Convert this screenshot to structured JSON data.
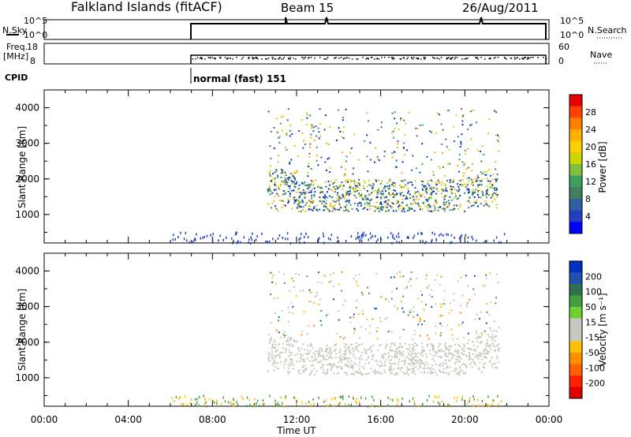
{
  "header": {
    "station": "Falkland Islands (fitACF)",
    "beam": "Beam 15",
    "date": "26/Aug/2011"
  },
  "top_panels": {
    "nsky_label": "N.Sky",
    "nsky_ticks": [
      "10^5",
      "10^0"
    ],
    "nsearch_label": "N.Search",
    "nsearch_ticks": [
      "10^5",
      "10^0"
    ],
    "freq_label": "Freq.",
    "freq_unit": "[MHz]",
    "freq_ticks": [
      "18",
      "8"
    ],
    "nave_label": "Nave",
    "nave_ticks": [
      "60",
      "0"
    ],
    "cpid_label": "CPID",
    "cpid_value": "normal (fast) 151"
  },
  "chart_data": [
    {
      "type": "heatmap",
      "ylabel": "Slant Range [km]",
      "yticks": [
        "1000",
        "2000",
        "3000",
        "4000"
      ],
      "yrange": [
        200,
        4500
      ],
      "colorbar_label": "Power [dB]",
      "colorbar_ticks": [
        "28",
        "24",
        "20",
        "16",
        "12",
        "8",
        "4"
      ],
      "colorbar_colors": [
        "#e60000",
        "#ff4000",
        "#ff7f00",
        "#ffb000",
        "#ffd000",
        "#c8d800",
        "#80c040",
        "#3aa060",
        "#408060",
        "#3060a0",
        "#2040c0",
        "#0000ff"
      ]
    },
    {
      "type": "heatmap",
      "ylabel": "Slant Range [km]",
      "yticks": [
        "1000",
        "2000",
        "3000",
        "4000"
      ],
      "yrange": [
        200,
        4500
      ],
      "colorbar_label": "Velocity [m s⁻¹]",
      "colorbar_ticks": [
        "200",
        "100",
        "50",
        "15",
        "-15",
        "-50",
        "-100",
        "-200"
      ],
      "colorbar_colors": [
        "#0030c0",
        "#2050b0",
        "#307050",
        "#40a040",
        "#70d030",
        "#c8c8c0",
        "#c8c8c0",
        "#ffc000",
        "#ff9000",
        "#ff6000",
        "#ff2000",
        "#e00000"
      ]
    }
  ],
  "x_axis": {
    "label": "Time UT",
    "ticks": [
      "00:00",
      "04:00",
      "08:00",
      "12:00",
      "16:00",
      "20:00",
      "00:00"
    ]
  },
  "colors": {
    "ground_scatter": "#c8c8c0",
    "axis": "#000000"
  }
}
